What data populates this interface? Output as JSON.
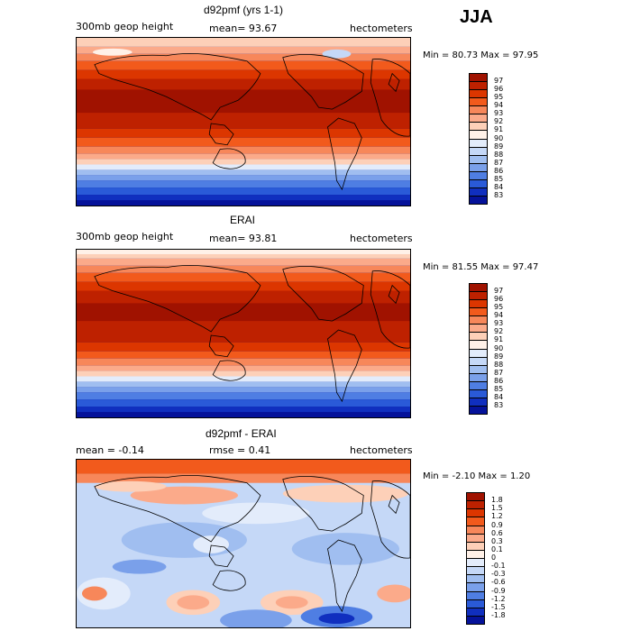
{
  "season_label": "JJA",
  "panels": [
    {
      "title": "d92pmf (yrs 1-1)",
      "left_label": "300mb geop height",
      "center_label": "mean=  93.67",
      "right_label": "hectometers",
      "minmax": "Min =  80.73 Max =  97.95",
      "colorbar": {
        "labels": [
          "97",
          "96",
          "95",
          "94",
          "93",
          "92",
          "91",
          "90",
          "89",
          "88",
          "87",
          "86",
          "85",
          "84",
          "83"
        ],
        "colors": [
          "#a01200",
          "#be2100",
          "#dc3600",
          "#f25a1c",
          "#f7875a",
          "#fbaa8a",
          "#fdd0b8",
          "#fff1e8",
          "#e3ecfb",
          "#c5d8f7",
          "#a0bef0",
          "#7aa0ea",
          "#4f7ee3",
          "#2a5ad8",
          "#102fbf",
          "#05129a"
        ]
      }
    },
    {
      "title": "ERAI",
      "left_label": "300mb geop height",
      "center_label": "mean=  93.81",
      "right_label": "hectometers",
      "minmax": "Min =  81.55 Max =  97.47",
      "colorbar": {
        "labels": [
          "97",
          "96",
          "95",
          "94",
          "93",
          "92",
          "91",
          "90",
          "89",
          "88",
          "87",
          "86",
          "85",
          "84",
          "83"
        ],
        "colors": [
          "#a01200",
          "#be2100",
          "#dc3600",
          "#f25a1c",
          "#f7875a",
          "#fbaa8a",
          "#fdd0b8",
          "#fff1e8",
          "#e3ecfb",
          "#c5d8f7",
          "#a0bef0",
          "#7aa0ea",
          "#4f7ee3",
          "#2a5ad8",
          "#102fbf",
          "#05129a"
        ]
      }
    },
    {
      "title": "d92pmf - ERAI",
      "left_label": "mean =   -0.14",
      "center_label": "rmse =   0.41",
      "right_label": "hectometers",
      "minmax": "Min =  -2.10 Max =   1.20",
      "colorbar": {
        "labels": [
          "1.8",
          "1.5",
          "1.2",
          "0.9",
          "0.6",
          "0.3",
          "0.1",
          "0",
          "-0.1",
          "-0.3",
          "-0.6",
          "-0.9",
          "-1.2",
          "-1.5",
          "-1.8"
        ],
        "colors": [
          "#a01200",
          "#be2100",
          "#dc3600",
          "#f25a1c",
          "#f7875a",
          "#fbaa8a",
          "#fdd0b8",
          "#fff1e8",
          "#e3ecfb",
          "#c5d8f7",
          "#a0bef0",
          "#7aa0ea",
          "#4f7ee3",
          "#2a5ad8",
          "#102fbf",
          "#05129a"
        ]
      }
    }
  ]
}
